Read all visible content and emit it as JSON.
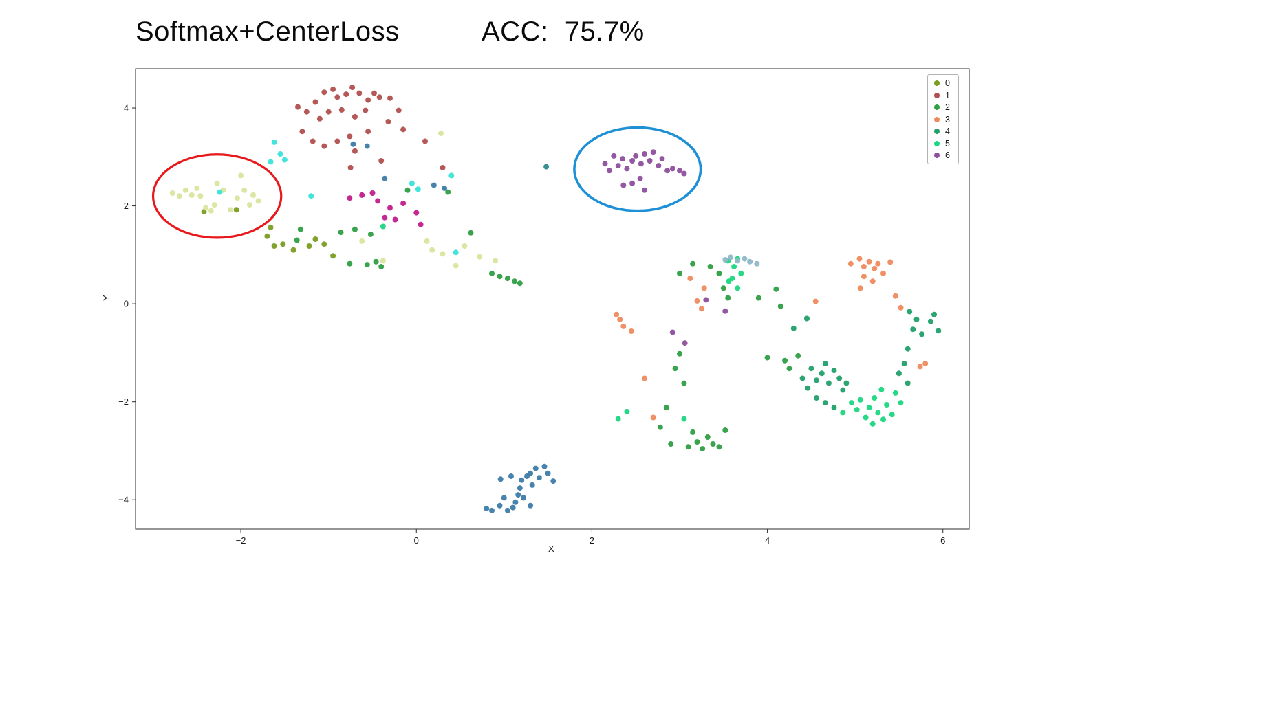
{
  "title": {
    "main": "Softmax+CenterLoss",
    "acc": "ACC:  75.7%"
  },
  "chart_data": {
    "type": "scatter",
    "title": "Softmax+CenterLoss",
    "subtitle": "ACC: 75.7%",
    "xlabel": "X",
    "ylabel": "Y",
    "axes": {
      "x": {
        "label": "X",
        "min": -3.2,
        "max": 6.3,
        "ticks": [
          -2,
          0,
          2,
          4,
          6
        ]
      },
      "y": {
        "label": "Y",
        "min": -4.6,
        "max": 4.8,
        "ticks": [
          -4,
          -2,
          0,
          2,
          4
        ]
      }
    },
    "legend_position": "upper-right",
    "grid": false,
    "series": [
      {
        "name": "class-0",
        "label": "0",
        "in_legend": true,
        "color": "#7a9d20",
        "points": [
          [
            -1.7,
            1.38
          ],
          [
            -1.62,
            1.18
          ],
          [
            -1.66,
            1.56
          ],
          [
            -1.52,
            1.22
          ],
          [
            -1.4,
            1.1
          ],
          [
            -1.22,
            1.18
          ],
          [
            -1.15,
            1.32
          ],
          [
            -0.95,
            0.98
          ],
          [
            -2.42,
            1.88
          ],
          [
            -2.05,
            1.92
          ],
          [
            -1.05,
            1.22
          ]
        ]
      },
      {
        "name": "class-1",
        "label": "1",
        "in_legend": true,
        "color": "#b0504f",
        "points": [
          [
            -1.35,
            4.02
          ],
          [
            -1.25,
            3.92
          ],
          [
            -1.15,
            4.12
          ],
          [
            -1.05,
            4.32
          ],
          [
            -0.95,
            4.38
          ],
          [
            -0.9,
            4.22
          ],
          [
            -0.8,
            4.28
          ],
          [
            -0.73,
            4.42
          ],
          [
            -0.65,
            4.3
          ],
          [
            -0.55,
            4.16
          ],
          [
            -0.48,
            4.3
          ],
          [
            -0.42,
            4.22
          ],
          [
            -0.3,
            4.2
          ],
          [
            -1.1,
            3.78
          ],
          [
            -1.0,
            3.92
          ],
          [
            -0.85,
            3.96
          ],
          [
            -0.7,
            3.82
          ],
          [
            -0.58,
            3.95
          ],
          [
            -1.3,
            3.52
          ],
          [
            -1.18,
            3.32
          ],
          [
            -1.05,
            3.22
          ],
          [
            -0.9,
            3.32
          ],
          [
            -0.76,
            3.42
          ],
          [
            -0.7,
            3.12
          ],
          [
            -0.55,
            3.52
          ],
          [
            -0.32,
            3.72
          ],
          [
            -0.15,
            3.56
          ],
          [
            -0.75,
            2.78
          ],
          [
            -0.4,
            2.92
          ],
          [
            0.1,
            3.32
          ],
          [
            0.3,
            2.78
          ],
          [
            -0.2,
            3.95
          ]
        ]
      },
      {
        "name": "class-2",
        "label": "2",
        "in_legend": true,
        "color": "#2f9e44",
        "points": [
          [
            -1.32,
            1.52
          ],
          [
            -1.36,
            1.3
          ],
          [
            -0.86,
            1.46
          ],
          [
            -0.7,
            1.52
          ],
          [
            -0.52,
            1.42
          ],
          [
            -0.46,
            0.86
          ],
          [
            -0.56,
            0.8
          ],
          [
            -0.4,
            0.76
          ],
          [
            -0.76,
            0.82
          ],
          [
            0.36,
            2.28
          ],
          [
            -0.1,
            2.32
          ],
          [
            0.86,
            0.62
          ],
          [
            0.95,
            0.56
          ],
          [
            1.04,
            0.52
          ],
          [
            1.12,
            0.46
          ],
          [
            1.18,
            0.42
          ],
          [
            0.62,
            1.45
          ],
          [
            3.0,
            0.62
          ],
          [
            3.15,
            0.82
          ],
          [
            3.35,
            0.76
          ],
          [
            3.45,
            0.62
          ],
          [
            3.5,
            0.32
          ],
          [
            3.55,
            0.12
          ],
          [
            4.0,
            -1.1
          ],
          [
            4.2,
            -1.16
          ],
          [
            4.25,
            -1.32
          ],
          [
            4.35,
            -1.06
          ],
          [
            4.1,
            0.3
          ],
          [
            3.9,
            0.12
          ],
          [
            4.15,
            -0.05
          ],
          [
            2.95,
            -1.32
          ],
          [
            3.05,
            -1.62
          ],
          [
            3.0,
            -1.02
          ],
          [
            2.85,
            -2.12
          ],
          [
            2.78,
            -2.52
          ],
          [
            2.9,
            -2.86
          ],
          [
            3.1,
            -2.92
          ],
          [
            3.2,
            -2.82
          ],
          [
            3.26,
            -2.96
          ],
          [
            3.32,
            -2.72
          ],
          [
            3.38,
            -2.86
          ],
          [
            3.15,
            -2.62
          ],
          [
            3.45,
            -2.92
          ],
          [
            3.52,
            -2.58
          ]
        ]
      },
      {
        "name": "class-3",
        "label": "3",
        "in_legend": true,
        "color": "#ef8a5e",
        "points": [
          [
            2.28,
            -0.22
          ],
          [
            2.32,
            -0.32
          ],
          [
            2.36,
            -0.46
          ],
          [
            2.45,
            -0.56
          ],
          [
            2.6,
            -1.52
          ],
          [
            2.7,
            -2.32
          ],
          [
            3.2,
            0.06
          ],
          [
            3.28,
            0.32
          ],
          [
            3.25,
            -0.1
          ],
          [
            3.12,
            0.52
          ],
          [
            4.55,
            0.05
          ],
          [
            4.95,
            0.82
          ],
          [
            5.05,
            0.92
          ],
          [
            5.1,
            0.76
          ],
          [
            5.16,
            0.86
          ],
          [
            5.22,
            0.72
          ],
          [
            5.26,
            0.82
          ],
          [
            5.1,
            0.56
          ],
          [
            5.2,
            0.46
          ],
          [
            5.32,
            0.62
          ],
          [
            5.06,
            0.32
          ],
          [
            5.46,
            0.16
          ],
          [
            5.52,
            -0.08
          ],
          [
            5.8,
            -1.22
          ],
          [
            5.74,
            -1.28
          ],
          [
            5.4,
            0.85
          ]
        ]
      },
      {
        "name": "class-4",
        "label": "4",
        "in_legend": true,
        "color": "#22a06b",
        "points": [
          [
            4.4,
            -1.52
          ],
          [
            4.5,
            -1.32
          ],
          [
            4.46,
            -1.72
          ],
          [
            4.56,
            -1.56
          ],
          [
            4.62,
            -1.42
          ],
          [
            4.66,
            -1.22
          ],
          [
            4.7,
            -1.62
          ],
          [
            4.76,
            -1.36
          ],
          [
            4.82,
            -1.52
          ],
          [
            4.86,
            -1.76
          ],
          [
            4.9,
            -1.62
          ],
          [
            4.56,
            -1.92
          ],
          [
            4.66,
            -2.02
          ],
          [
            4.76,
            -2.12
          ],
          [
            5.5,
            -1.42
          ],
          [
            5.56,
            -1.22
          ],
          [
            5.6,
            -0.92
          ],
          [
            5.66,
            -0.52
          ],
          [
            5.7,
            -0.32
          ],
          [
            5.62,
            -0.16
          ],
          [
            5.76,
            -0.62
          ],
          [
            5.86,
            -0.36
          ],
          [
            5.9,
            -0.22
          ],
          [
            5.6,
            -1.62
          ],
          [
            4.3,
            -0.5
          ],
          [
            4.45,
            -0.3
          ],
          [
            5.95,
            -0.55
          ]
        ]
      },
      {
        "name": "class-5",
        "label": "5",
        "in_legend": true,
        "color": "#1bd77f",
        "points": [
          [
            3.55,
            0.88
          ],
          [
            3.62,
            0.76
          ],
          [
            3.66,
            0.92
          ],
          [
            3.7,
            0.62
          ],
          [
            3.6,
            0.52
          ],
          [
            3.56,
            0.46
          ],
          [
            3.66,
            0.32
          ],
          [
            -0.38,
            1.58
          ],
          [
            4.86,
            -2.22
          ],
          [
            4.96,
            -2.02
          ],
          [
            5.02,
            -2.16
          ],
          [
            5.06,
            -1.96
          ],
          [
            5.12,
            -2.32
          ],
          [
            5.16,
            -2.12
          ],
          [
            5.22,
            -1.92
          ],
          [
            5.26,
            -2.22
          ],
          [
            5.32,
            -2.36
          ],
          [
            5.36,
            -2.06
          ],
          [
            5.42,
            -2.26
          ],
          [
            5.46,
            -1.82
          ],
          [
            5.52,
            -2.02
          ],
          [
            5.3,
            -1.75
          ],
          [
            5.2,
            -2.45
          ],
          [
            3.05,
            -2.35
          ],
          [
            2.4,
            -2.2
          ],
          [
            2.3,
            -2.35
          ]
        ]
      },
      {
        "name": "class-6",
        "label": "6",
        "in_legend": true,
        "color": "#8e4f9e",
        "points": [
          [
            2.15,
            2.86
          ],
          [
            2.2,
            2.72
          ],
          [
            2.3,
            2.82
          ],
          [
            2.35,
            2.96
          ],
          [
            2.4,
            2.76
          ],
          [
            2.46,
            2.92
          ],
          [
            2.5,
            3.02
          ],
          [
            2.56,
            2.86
          ],
          [
            2.6,
            3.06
          ],
          [
            2.66,
            2.92
          ],
          [
            2.7,
            3.1
          ],
          [
            2.76,
            2.82
          ],
          [
            2.8,
            2.96
          ],
          [
            2.86,
            2.72
          ],
          [
            2.92,
            2.76
          ],
          [
            2.55,
            2.56
          ],
          [
            2.46,
            2.46
          ],
          [
            2.36,
            2.42
          ],
          [
            2.6,
            2.32
          ],
          [
            3.0,
            2.72
          ],
          [
            2.25,
            3.02
          ],
          [
            3.05,
            2.66
          ],
          [
            2.92,
            -0.58
          ],
          [
            3.06,
            -0.8
          ],
          [
            3.3,
            0.08
          ],
          [
            3.52,
            -0.15
          ]
        ]
      },
      {
        "name": "pale-green",
        "label": "pale-green",
        "in_legend": false,
        "color": "#d8e69e",
        "points": [
          [
            -2.78,
            2.26
          ],
          [
            -2.7,
            2.2
          ],
          [
            -2.63,
            2.32
          ],
          [
            -2.56,
            2.22
          ],
          [
            -2.5,
            2.36
          ],
          [
            -2.46,
            2.2
          ],
          [
            -2.4,
            1.96
          ],
          [
            -2.34,
            1.9
          ],
          [
            -2.3,
            2.02
          ],
          [
            -2.27,
            2.46
          ],
          [
            -2.2,
            2.32
          ],
          [
            -2.12,
            1.92
          ],
          [
            -2.04,
            2.16
          ],
          [
            -1.96,
            2.32
          ],
          [
            -1.9,
            2.02
          ],
          [
            -1.86,
            2.22
          ],
          [
            -2.0,
            2.62
          ],
          [
            -1.8,
            2.1
          ],
          [
            0.12,
            1.28
          ],
          [
            0.3,
            1.02
          ],
          [
            0.55,
            1.18
          ],
          [
            0.72,
            0.96
          ],
          [
            0.9,
            0.88
          ],
          [
            -0.62,
            1.28
          ],
          [
            -0.38,
            0.88
          ],
          [
            0.28,
            3.48
          ],
          [
            0.18,
            1.1
          ],
          [
            0.45,
            0.78
          ]
        ]
      },
      {
        "name": "cyan",
        "label": "cyan",
        "in_legend": false,
        "color": "#3ae3da",
        "points": [
          [
            -1.62,
            3.3
          ],
          [
            -1.55,
            3.06
          ],
          [
            -1.5,
            2.94
          ],
          [
            -1.66,
            2.9
          ],
          [
            -1.2,
            2.2
          ],
          [
            -2.24,
            2.28
          ],
          [
            -0.05,
            2.46
          ],
          [
            0.02,
            2.34
          ],
          [
            0.45,
            1.05
          ],
          [
            0.4,
            2.62
          ]
        ]
      },
      {
        "name": "steel-blue",
        "label": "steel-blue",
        "in_legend": false,
        "color": "#3d7ca8",
        "points": [
          [
            -0.72,
            3.26
          ],
          [
            -0.56,
            3.22
          ],
          [
            -0.36,
            2.56
          ],
          [
            0.2,
            2.42
          ],
          [
            0.32,
            2.36
          ],
          [
            0.8,
            -4.18
          ],
          [
            0.86,
            -4.22
          ],
          [
            0.95,
            -4.12
          ],
          [
            1.0,
            -3.96
          ],
          [
            1.04,
            -4.22
          ],
          [
            1.1,
            -4.16
          ],
          [
            1.13,
            -4.05
          ],
          [
            1.16,
            -3.9
          ],
          [
            1.18,
            -3.76
          ],
          [
            1.2,
            -3.6
          ],
          [
            1.26,
            -3.52
          ],
          [
            1.3,
            -3.46
          ],
          [
            1.32,
            -3.7
          ],
          [
            1.36,
            -3.36
          ],
          [
            1.46,
            -3.32
          ],
          [
            1.5,
            -3.46
          ],
          [
            1.56,
            -3.62
          ],
          [
            1.3,
            -4.12
          ],
          [
            1.22,
            -3.96
          ],
          [
            1.08,
            -3.52
          ],
          [
            0.96,
            -3.58
          ],
          [
            1.4,
            -3.55
          ]
        ]
      },
      {
        "name": "magenta",
        "label": "magenta",
        "in_legend": false,
        "color": "#c01e8a",
        "points": [
          [
            -0.76,
            2.16
          ],
          [
            -0.62,
            2.22
          ],
          [
            -0.5,
            2.26
          ],
          [
            -0.44,
            2.1
          ],
          [
            -0.3,
            1.96
          ],
          [
            -0.36,
            1.76
          ],
          [
            -0.24,
            1.72
          ],
          [
            0.0,
            1.86
          ],
          [
            0.05,
            1.62
          ],
          [
            -0.15,
            2.05
          ]
        ]
      },
      {
        "name": "blue-gray",
        "label": "blue-gray",
        "in_legend": false,
        "color": "#90b7c8",
        "points": [
          [
            3.52,
            0.9
          ],
          [
            3.58,
            0.95
          ],
          [
            3.66,
            0.88
          ],
          [
            3.74,
            0.92
          ],
          [
            3.88,
            0.82
          ],
          [
            3.8,
            0.86
          ]
        ]
      },
      {
        "name": "teal",
        "label": "teal",
        "in_legend": false,
        "color": "#2e8b8e",
        "points": [
          [
            1.48,
            2.8
          ]
        ]
      }
    ],
    "annotations": [
      {
        "type": "ellipse",
        "name": "red-ellipse",
        "cx": -2.27,
        "cy": 2.2,
        "rx": 0.73,
        "ry": 0.85,
        "color": "#e8191c",
        "width": 3.2
      },
      {
        "type": "ellipse",
        "name": "blue-ellipse",
        "cx": 2.52,
        "cy": 2.75,
        "rx": 0.72,
        "ry": 0.85,
        "color": "#1e90d6",
        "width": 3.6
      }
    ]
  }
}
